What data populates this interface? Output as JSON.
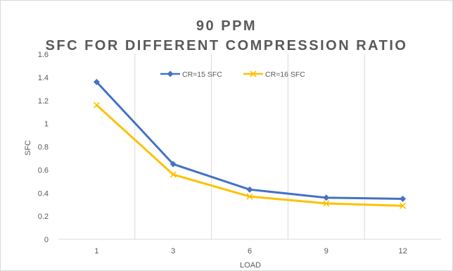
{
  "chart_data": {
    "type": "line",
    "title": "90 PPM",
    "subtitle": "SFC FOR DIFFERENT COMPRESSION RATIO",
    "xlabel": "LOAD",
    "ylabel": "SFC",
    "categories": [
      "1",
      "3",
      "6",
      "9",
      "12"
    ],
    "ylim": [
      0,
      1.6
    ],
    "yticks": [
      "0",
      "0.2",
      "0.4",
      "0.6",
      "0.8",
      "1",
      "1.2",
      "1.4",
      "1.6"
    ],
    "grid": "vertical",
    "legend_position": "top",
    "series": [
      {
        "name": "CR=15 SFC",
        "color": "#4472c4",
        "marker": "diamond",
        "values": [
          1.36,
          0.65,
          0.43,
          0.36,
          0.35
        ]
      },
      {
        "name": "CR=16 SFC",
        "color": "#ffc000",
        "marker": "x",
        "values": [
          1.16,
          0.56,
          0.37,
          0.31,
          0.29
        ]
      }
    ]
  }
}
